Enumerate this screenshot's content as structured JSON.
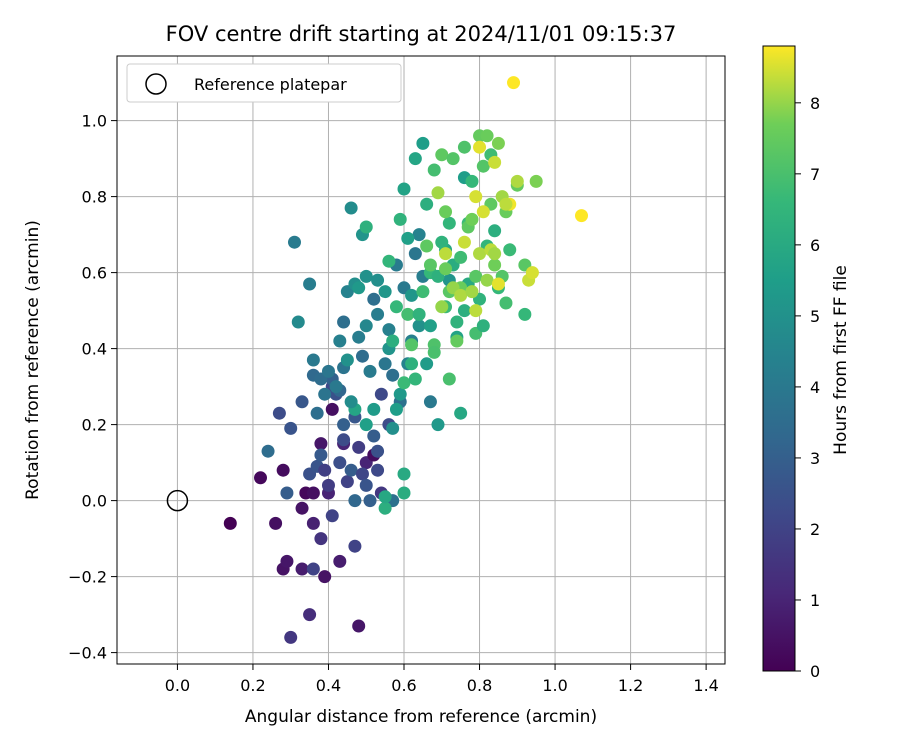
{
  "chart_data": {
    "type": "scatter",
    "title": "FOV centre drift starting at 2024/11/01 09:15:37",
    "xlabel": "Angular distance from reference (arcmin)",
    "ylabel": "Rotation from reference (arcmin)",
    "xlim": [
      -0.16,
      1.45
    ],
    "ylim": [
      -0.43,
      1.17
    ],
    "xticks": [
      0.0,
      0.2,
      0.4,
      0.6,
      0.8,
      1.0,
      1.2,
      1.4
    ],
    "xtick_labels": [
      "0.0",
      "0.2",
      "0.4",
      "0.6",
      "0.8",
      "1.0",
      "1.2",
      "1.4"
    ],
    "yticks": [
      -0.4,
      -0.2,
      0.0,
      0.2,
      0.4,
      0.6,
      0.8,
      1.0
    ],
    "ytick_labels": [
      "−0.4",
      "−0.2",
      "0.0",
      "0.2",
      "0.4",
      "0.6",
      "0.8",
      "1.0"
    ],
    "grid": true,
    "legend": {
      "position": "top-left",
      "entries": [
        "Reference platepar"
      ]
    },
    "colormap": "viridis",
    "colorbar": {
      "label": "Hours from first FF file",
      "range": [
        0,
        8.8
      ],
      "ticks": [
        0,
        1,
        2,
        3,
        4,
        5,
        6,
        7,
        8
      ],
      "tick_labels": [
        "0",
        "1",
        "2",
        "3",
        "4",
        "5",
        "6",
        "7",
        "8"
      ]
    },
    "reference_point": {
      "x": 0.0,
      "y": 0.0,
      "label": "Reference platepar"
    },
    "points": [
      [
        0.14,
        -0.06,
        0.0
      ],
      [
        0.22,
        0.06,
        0.2
      ],
      [
        0.26,
        -0.06,
        0.4
      ],
      [
        0.28,
        0.08,
        0.3
      ],
      [
        0.28,
        -0.18,
        0.5
      ],
      [
        0.29,
        -0.16,
        0.6
      ],
      [
        0.3,
        -0.36,
        1.6
      ],
      [
        0.33,
        -0.02,
        0.5
      ],
      [
        0.33,
        -0.18,
        0.8
      ],
      [
        0.34,
        0.02,
        0.2
      ],
      [
        0.36,
        0.02,
        0.4
      ],
      [
        0.36,
        -0.06,
        0.9
      ],
      [
        0.35,
        -0.3,
        1.3
      ],
      [
        0.36,
        -0.18,
        2.0
      ],
      [
        0.38,
        -0.1,
        1.5
      ],
      [
        0.39,
        -0.2,
        0.5
      ],
      [
        0.38,
        0.15,
        0.6
      ],
      [
        0.4,
        0.02,
        1.0
      ],
      [
        0.41,
        -0.04,
        2.0
      ],
      [
        0.41,
        0.24,
        0.4
      ],
      [
        0.43,
        -0.16,
        0.8
      ],
      [
        0.44,
        0.15,
        1.0
      ],
      [
        0.47,
        -0.12,
        2.0
      ],
      [
        0.48,
        -0.33,
        0.6
      ],
      [
        0.5,
        0.1,
        1.0
      ],
      [
        0.52,
        0.12,
        0.3
      ],
      [
        0.53,
        0.08,
        2.2
      ],
      [
        0.54,
        0.02,
        1.6
      ],
      [
        0.27,
        0.23,
        2.3
      ],
      [
        0.29,
        0.02,
        2.9
      ],
      [
        0.3,
        0.19,
        2.6
      ],
      [
        0.33,
        0.26,
        2.7
      ],
      [
        0.35,
        0.07,
        2.5
      ],
      [
        0.37,
        0.09,
        2.6
      ],
      [
        0.38,
        0.12,
        2.8
      ],
      [
        0.39,
        0.08,
        1.9
      ],
      [
        0.4,
        0.04,
        1.8
      ],
      [
        0.41,
        0.3,
        2.2
      ],
      [
        0.42,
        0.28,
        2.5
      ],
      [
        0.43,
        0.1,
        2.4
      ],
      [
        0.44,
        0.16,
        2.3
      ],
      [
        0.45,
        0.05,
        2.0
      ],
      [
        0.46,
        0.08,
        2.9
      ],
      [
        0.47,
        0.0,
        3.3
      ],
      [
        0.48,
        0.14,
        1.8
      ],
      [
        0.49,
        0.07,
        2.1
      ],
      [
        0.5,
        0.04,
        2.6
      ],
      [
        0.51,
        0.0,
        3.0
      ],
      [
        0.52,
        0.17,
        2.9
      ],
      [
        0.53,
        0.13,
        2.5
      ],
      [
        0.54,
        0.28,
        2.2
      ],
      [
        0.56,
        0.2,
        2.3
      ],
      [
        0.57,
        0.0,
        3.7
      ],
      [
        0.41,
        0.32,
        3.1
      ],
      [
        0.43,
        0.29,
        3.3
      ],
      [
        0.44,
        0.2,
        3.0
      ],
      [
        0.47,
        0.22,
        2.7
      ],
      [
        0.24,
        0.13,
        3.5
      ],
      [
        0.31,
        0.68,
        4.1
      ],
      [
        0.32,
        0.47,
        4.7
      ],
      [
        0.35,
        0.57,
        4.2
      ],
      [
        0.36,
        0.37,
        4.0
      ],
      [
        0.36,
        0.33,
        3.4
      ],
      [
        0.37,
        0.23,
        3.6
      ],
      [
        0.38,
        0.32,
        3.5
      ],
      [
        0.39,
        0.28,
        3.8
      ],
      [
        0.4,
        0.34,
        3.9
      ],
      [
        0.42,
        0.3,
        4.0
      ],
      [
        0.43,
        0.42,
        4.3
      ],
      [
        0.44,
        0.35,
        3.8
      ],
      [
        0.44,
        0.47,
        3.6
      ],
      [
        0.45,
        0.55,
        4.4
      ],
      [
        0.46,
        0.77,
        4.8
      ],
      [
        0.47,
        0.57,
        4.9
      ],
      [
        0.48,
        0.43,
        4.2
      ],
      [
        0.49,
        0.38,
        3.5
      ],
      [
        0.5,
        0.46,
        4.6
      ],
      [
        0.51,
        0.34,
        4.1
      ],
      [
        0.52,
        0.53,
        3.6
      ],
      [
        0.53,
        0.49,
        4.2
      ],
      [
        0.55,
        0.36,
        3.9
      ],
      [
        0.56,
        0.45,
        4.3
      ],
      [
        0.57,
        0.33,
        3.6
      ],
      [
        0.58,
        0.62,
        4.1
      ],
      [
        0.59,
        0.26,
        3.7
      ],
      [
        0.6,
        0.56,
        4.0
      ],
      [
        0.61,
        0.36,
        4.4
      ],
      [
        0.62,
        0.42,
        4.3
      ],
      [
        0.63,
        0.65,
        3.9
      ],
      [
        0.64,
        0.7,
        4.4
      ],
      [
        0.65,
        0.59,
        4.2
      ],
      [
        0.67,
        0.26,
        4.0
      ],
      [
        0.47,
        0.24,
        5.8
      ],
      [
        0.49,
        0.7,
        5.1
      ],
      [
        0.5,
        0.59,
        5.0
      ],
      [
        0.45,
        0.37,
        5.0
      ],
      [
        0.46,
        0.26,
        4.8
      ],
      [
        0.48,
        0.56,
        5.3
      ],
      [
        0.5,
        0.2,
        5.6
      ],
      [
        0.52,
        0.24,
        5.4
      ],
      [
        0.53,
        0.58,
        4.9
      ],
      [
        0.55,
        0.55,
        5.2
      ],
      [
        0.56,
        0.4,
        5.1
      ],
      [
        0.57,
        0.19,
        4.9
      ],
      [
        0.58,
        0.24,
        5.5
      ],
      [
        0.59,
        0.28,
        5.3
      ],
      [
        0.6,
        0.82,
        5.7
      ],
      [
        0.61,
        0.69,
        5.6
      ],
      [
        0.62,
        0.54,
        5.2
      ],
      [
        0.63,
        0.9,
        5.8
      ],
      [
        0.64,
        0.46,
        5.0
      ],
      [
        0.65,
        0.94,
        5.5
      ],
      [
        0.66,
        0.36,
        5.4
      ],
      [
        0.67,
        0.46,
        5.6
      ],
      [
        0.69,
        0.2,
        5.3
      ],
      [
        0.71,
        0.66,
        5.9
      ],
      [
        0.72,
        0.58,
        5.1
      ],
      [
        0.74,
        0.43,
        5.7
      ],
      [
        0.75,
        0.23,
        5.9
      ],
      [
        0.76,
        0.85,
        5.5
      ],
      [
        0.77,
        0.57,
        6.0
      ],
      [
        0.5,
        0.72,
        6.3
      ],
      [
        0.56,
        0.63,
        6.5
      ],
      [
        0.57,
        0.42,
        6.2
      ],
      [
        0.58,
        0.51,
        6.6
      ],
      [
        0.59,
        0.74,
        6.4
      ],
      [
        0.6,
        0.31,
        6.7
      ],
      [
        0.6,
        0.07,
        6.0
      ],
      [
        0.6,
        0.02,
        6.1
      ],
      [
        0.61,
        0.49,
        6.9
      ],
      [
        0.62,
        0.36,
        6.3
      ],
      [
        0.63,
        0.32,
        6.5
      ],
      [
        0.64,
        0.49,
        6.4
      ],
      [
        0.65,
        0.55,
        6.8
      ],
      [
        0.66,
        0.78,
        6.2
      ],
      [
        0.67,
        0.6,
        6.6
      ],
      [
        0.68,
        0.87,
        6.9
      ],
      [
        0.69,
        0.59,
        6.3
      ],
      [
        0.7,
        0.68,
        6.4
      ],
      [
        0.71,
        0.51,
        6.7
      ],
      [
        0.72,
        0.73,
        6.5
      ],
      [
        0.73,
        0.62,
        6.1
      ],
      [
        0.74,
        0.47,
        6.4
      ],
      [
        0.75,
        0.64,
        6.8
      ],
      [
        0.76,
        0.5,
        6.2
      ],
      [
        0.77,
        0.73,
        6.7
      ],
      [
        0.78,
        0.84,
        6.6
      ],
      [
        0.79,
        0.44,
        6.9
      ],
      [
        0.8,
        0.53,
        6.4
      ],
      [
        0.81,
        0.46,
        6.3
      ],
      [
        0.82,
        0.67,
        6.5
      ],
      [
        0.83,
        0.91,
        6.8
      ],
      [
        0.84,
        0.71,
        6.2
      ],
      [
        0.85,
        0.56,
        6.6
      ],
      [
        0.87,
        0.52,
        6.9
      ],
      [
        0.88,
        0.66,
        6.7
      ],
      [
        0.92,
        0.49,
        6.6
      ],
      [
        0.55,
        -0.02,
        6.2
      ],
      [
        0.55,
        0.01,
        5.9
      ],
      [
        0.62,
        0.41,
        7.2
      ],
      [
        0.66,
        0.67,
        7.4
      ],
      [
        0.68,
        0.41,
        7.1
      ],
      [
        0.7,
        0.91,
        7.4
      ],
      [
        0.71,
        0.76,
        7.6
      ],
      [
        0.72,
        0.32,
        7.0
      ],
      [
        0.72,
        0.55,
        7.3
      ],
      [
        0.73,
        0.9,
        7.2
      ],
      [
        0.74,
        0.42,
        7.5
      ],
      [
        0.75,
        0.56,
        7.6
      ],
      [
        0.76,
        0.93,
        7.1
      ],
      [
        0.77,
        0.72,
        7.4
      ],
      [
        0.78,
        0.74,
        7.7
      ],
      [
        0.79,
        0.59,
        7.3
      ],
      [
        0.8,
        0.96,
        7.5
      ],
      [
        0.81,
        0.88,
        7.2
      ],
      [
        0.82,
        0.96,
        7.6
      ],
      [
        0.83,
        0.78,
        7.4
      ],
      [
        0.84,
        0.62,
        7.7
      ],
      [
        0.85,
        0.94,
        7.8
      ],
      [
        0.86,
        0.59,
        7.2
      ],
      [
        0.87,
        0.76,
        7.6
      ],
      [
        0.9,
        0.83,
        7.5
      ],
      [
        0.92,
        0.62,
        7.3
      ],
      [
        0.95,
        0.84,
        7.8
      ],
      [
        0.68,
        0.39,
        7.0
      ],
      [
        0.67,
        0.62,
        7.3
      ],
      [
        0.71,
        0.61,
        7.6
      ],
      [
        0.69,
        0.81,
        8.1
      ],
      [
        0.7,
        0.51,
        8.0
      ],
      [
        0.71,
        0.65,
        8.3
      ],
      [
        0.73,
        0.56,
        8.0
      ],
      [
        0.75,
        0.54,
        8.2
      ],
      [
        0.76,
        0.68,
        8.4
      ],
      [
        0.78,
        0.55,
        8.1
      ],
      [
        0.79,
        0.5,
        8.3
      ],
      [
        0.79,
        0.8,
        8.5
      ],
      [
        0.8,
        0.93,
        8.6
      ],
      [
        0.8,
        0.65,
        8.2
      ],
      [
        0.81,
        0.76,
        8.5
      ],
      [
        0.82,
        0.58,
        8.0
      ],
      [
        0.83,
        0.66,
        8.3
      ],
      [
        0.84,
        0.89,
        8.4
      ],
      [
        0.85,
        0.57,
        8.6
      ],
      [
        0.86,
        0.8,
        8.1
      ],
      [
        0.88,
        0.78,
        8.7
      ],
      [
        0.9,
        0.84,
        8.2
      ],
      [
        0.93,
        0.58,
        8.4
      ],
      [
        0.94,
        0.6,
        8.5
      ],
      [
        0.89,
        1.1,
        8.8
      ],
      [
        1.07,
        0.75,
        8.8
      ],
      [
        0.84,
        0.65,
        8.1
      ],
      [
        0.87,
        0.78,
        8.3
      ]
    ]
  }
}
